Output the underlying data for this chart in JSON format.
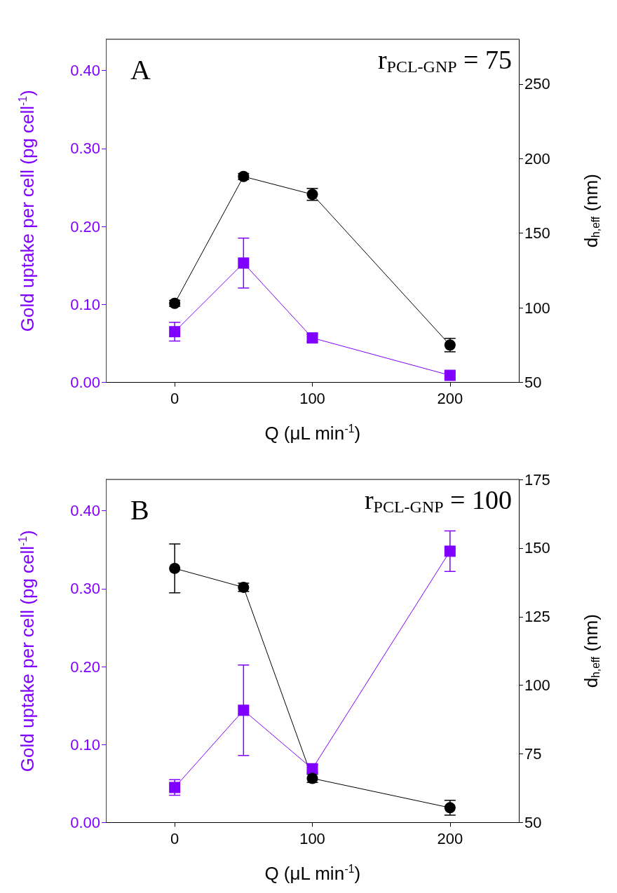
{
  "chart_data": [
    {
      "type": "line",
      "title": "A",
      "annotations": [
        "r$_{PCL-GNP}$ = 75"
      ],
      "xlabel": "Q (μL min$^{-1}$)",
      "ylabel": "Gold uptake per cell (pg cell$^{-1}$)",
      "y2label": "d$_{h,eff}$ (nm)",
      "x": [
        0,
        50,
        100,
        200
      ],
      "xlim": [
        -50,
        250
      ],
      "xticks": [
        0,
        100,
        200
      ],
      "ylim": [
        0,
        0.44
      ],
      "yticks": [
        {
          "value": 0,
          "label": "0.00"
        },
        {
          "value": 0.1,
          "label": "0.10"
        },
        {
          "value": 0.2,
          "label": "0.20"
        },
        {
          "value": 0.3,
          "label": "0.30"
        },
        {
          "value": 0.4,
          "label": "0.40"
        }
      ],
      "y2lim": [
        50,
        280
      ],
      "y2ticks": [
        50,
        100,
        150,
        200,
        250
      ],
      "grid": false,
      "series": [
        {
          "color": "#8000ff",
          "marker": "square",
          "values": [
            0.065,
            0.153,
            0.057,
            0.009
          ],
          "errors": [
            0.012,
            0.032,
            0.005,
            0.004
          ]
        },
        {
          "color": "#000000",
          "marker": "circle",
          "axis": "y2",
          "values": [
            103,
            188,
            176,
            75
          ],
          "errors": [
            2,
            2,
            4,
            4.5
          ]
        }
      ]
    },
    {
      "type": "line",
      "title": "B",
      "annotations": [
        "r$_{PCL-GNP}$ = 100"
      ],
      "xlabel": "Q (μL min$^{-1}$)",
      "ylabel": "Gold uptake per cell (pg cell$^{-1}$)",
      "y2label": "d$_{h,eff}$ (nm)",
      "x": [
        0,
        50,
        100,
        200
      ],
      "xlim": [
        -50,
        250
      ],
      "xticks": [
        0,
        100,
        200
      ],
      "ylim": [
        0,
        0.44
      ],
      "yticks": [
        {
          "value": 0,
          "label": "0.00"
        },
        {
          "value": 0.1,
          "label": "0.10"
        },
        {
          "value": 0.2,
          "label": "0.20"
        },
        {
          "value": 0.3,
          "label": "0.30"
        },
        {
          "value": 0.4,
          "label": "0.40"
        }
      ],
      "y2lim": [
        50,
        175
      ],
      "y2ticks": [
        50,
        75,
        100,
        125,
        150,
        175
      ],
      "grid": false,
      "series": [
        {
          "color": "#8000ff",
          "marker": "square",
          "values": [
            0.045,
            0.144,
            0.069,
            0.348
          ],
          "errors": [
            0.01,
            0.058,
            0.005,
            0.026
          ]
        },
        {
          "color": "#000000",
          "marker": "circle",
          "axis": "y2",
          "values": [
            142.6,
            135.7,
            66.1,
            55.4
          ],
          "errors": [
            8.9,
            1.5,
            1.5,
            2.7
          ]
        }
      ]
    }
  ]
}
